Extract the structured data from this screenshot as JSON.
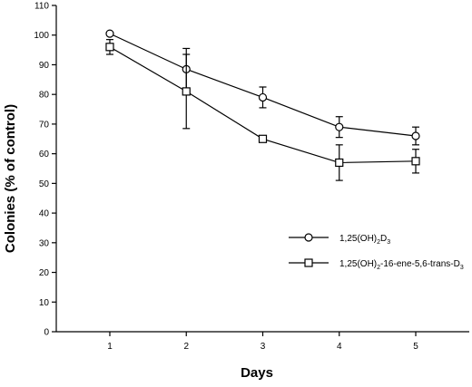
{
  "chart_data": {
    "type": "line",
    "title": "",
    "xlabel": "Days",
    "ylabel": "Colonies (% of control)",
    "x": [
      1,
      2,
      3,
      4,
      5
    ],
    "xlim": [
      0.3,
      5.7
    ],
    "ylim": [
      0,
      110
    ],
    "yticks": [
      0,
      10,
      20,
      30,
      40,
      50,
      60,
      70,
      80,
      90,
      100,
      110
    ],
    "xtick_labels": [
      "1",
      "2",
      "3",
      "4",
      "5"
    ],
    "grid": false,
    "legend_position": "right",
    "series": [
      {
        "name": "1,25(OH)2D3",
        "label_parts": [
          "1,25(OH)",
          "2",
          "D",
          "3",
          ""
        ],
        "marker": "circle",
        "values": [
          100.5,
          88.5,
          79,
          69,
          66
        ],
        "error": [
          null,
          7,
          3.5,
          3.5,
          3
        ]
      },
      {
        "name": "1,25(OH)2-16-ene-5,6-trans-D3",
        "label_parts": [
          "1,25(OH)",
          "2",
          "-16-ene-5,6-trans-D",
          "3",
          ""
        ],
        "marker": "square",
        "values": [
          96,
          81,
          65,
          57,
          57.5
        ],
        "error": [
          2.5,
          12.5,
          null,
          6,
          4
        ]
      }
    ]
  }
}
